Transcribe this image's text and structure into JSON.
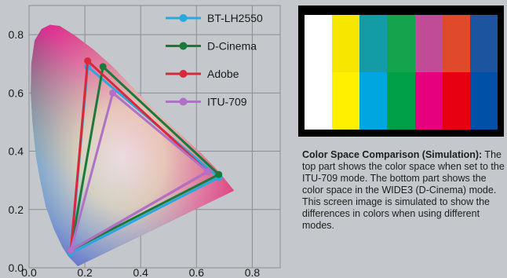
{
  "chart_data": {
    "type": "scatter",
    "subtype": "CIE 1931 chromaticity diagram with color gamut triangles",
    "title": "",
    "xlabel": "",
    "ylabel": "",
    "xlim": [
      0,
      0.9
    ],
    "ylim": [
      0,
      0.9
    ],
    "x_ticks": [
      "0.0",
      "0.2",
      "0.4",
      "0.6",
      "0.8"
    ],
    "y_ticks": [
      "0.0",
      "0.2",
      "0.4",
      "0.6",
      "0.8"
    ],
    "grid": true,
    "legend_position": "top-right",
    "series": [
      {
        "name": "BT-LH2550",
        "color": "#29a8e0",
        "points": [
          [
            0.68,
            0.31
          ],
          [
            0.21,
            0.69
          ],
          [
            0.15,
            0.05
          ]
        ]
      },
      {
        "name": "D-Cinema",
        "color": "#1a7a3a",
        "points": [
          [
            0.68,
            0.32
          ],
          [
            0.265,
            0.69
          ],
          [
            0.15,
            0.06
          ]
        ]
      },
      {
        "name": "Adobe",
        "color": "#d8283a",
        "points": [
          [
            0.64,
            0.33
          ],
          [
            0.21,
            0.71
          ],
          [
            0.15,
            0.06
          ]
        ]
      },
      {
        "name": "ITU-709",
        "color": "#b070c8",
        "points": [
          [
            0.64,
            0.33
          ],
          [
            0.3,
            0.6
          ],
          [
            0.15,
            0.06
          ]
        ]
      }
    ]
  },
  "swatches": {
    "top": [
      "#ffffff",
      "#f7e600",
      "#139ba6",
      "#16a34e",
      "#c04c98",
      "#e04a2a",
      "#1c54a0"
    ],
    "bottom": [
      "#ffffff",
      "#fff000",
      "#00a6e0",
      "#00a049",
      "#e6007e",
      "#e60012",
      "#0050a8"
    ]
  },
  "caption": {
    "title": "Color Space Comparison (Simulation):",
    "body": " The top part shows the color space when set to the ITU-709 mode. The bottom part shows the color space in the WIDE3 (D-Cinema) mode. This screen image is simulated to show the differences in colors when using different modes."
  }
}
